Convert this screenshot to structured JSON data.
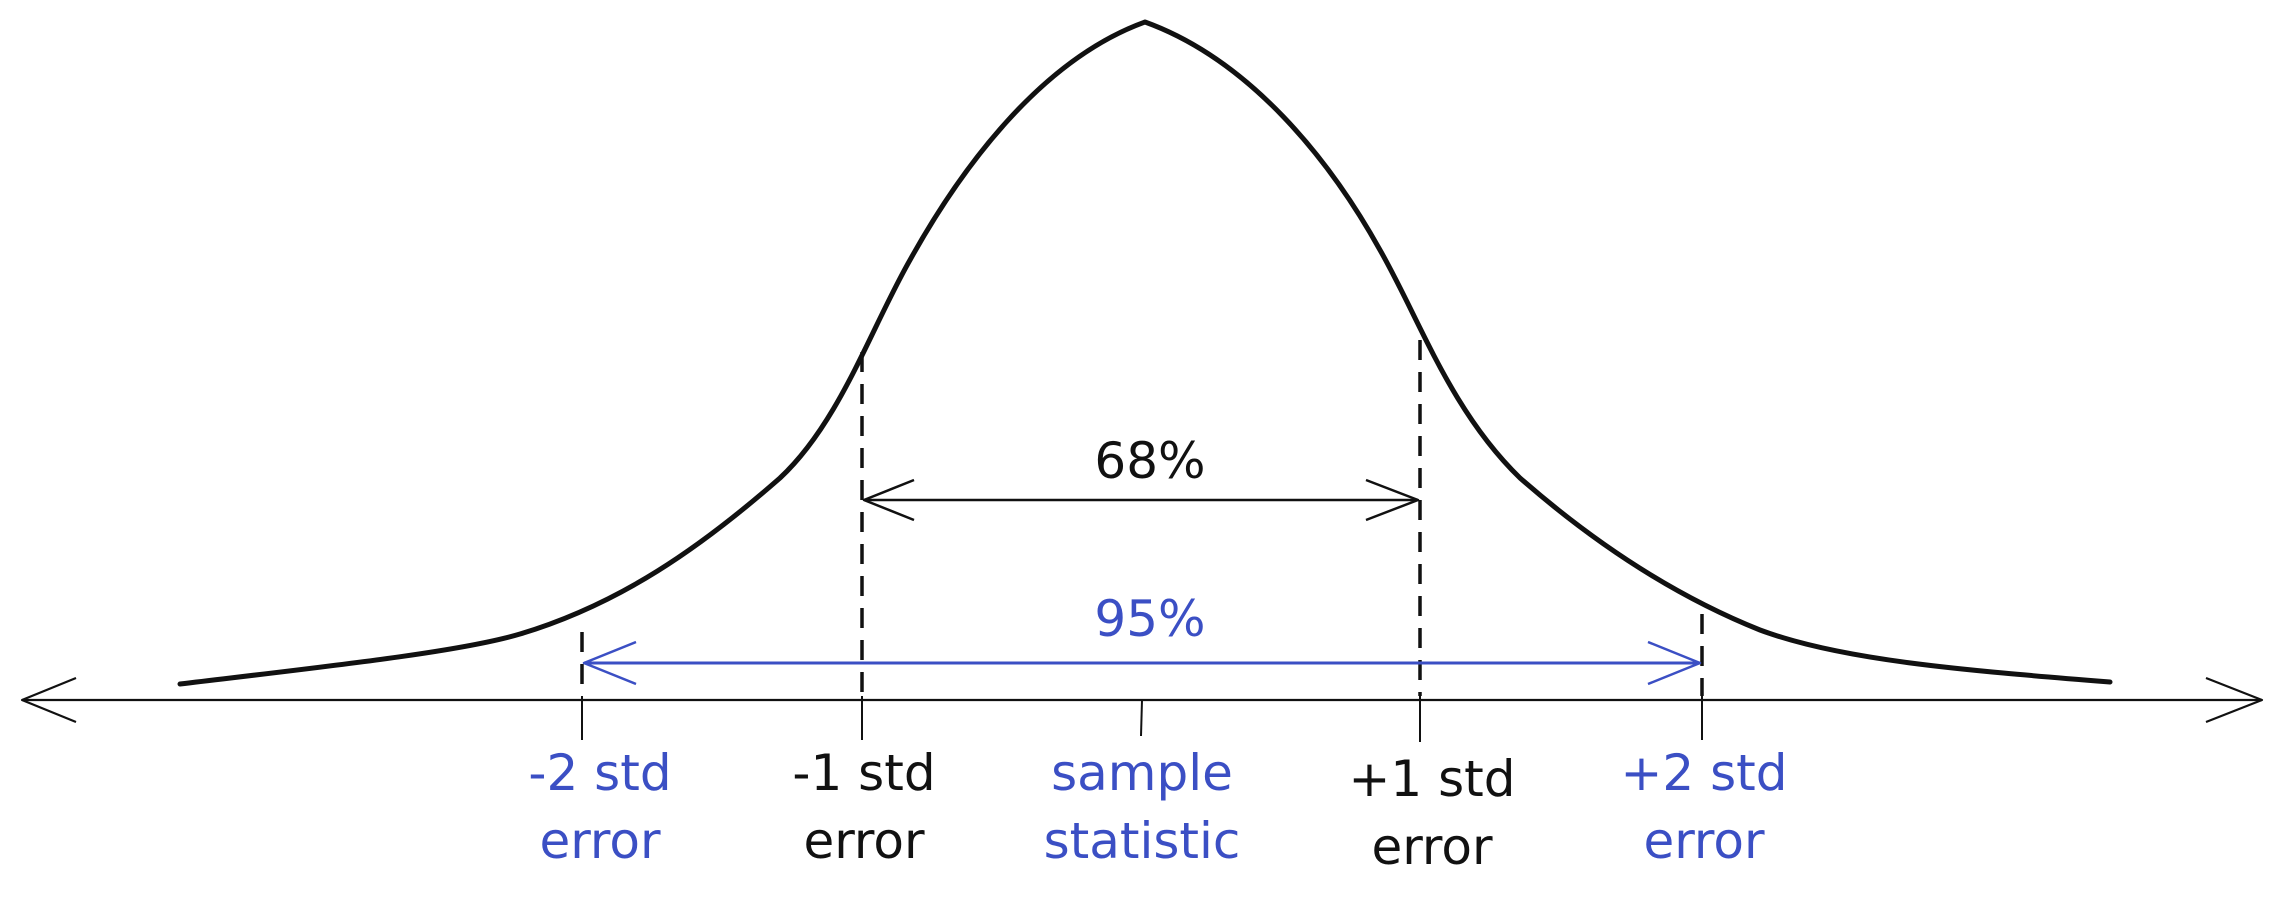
{
  "colors": {
    "ink": "#111111",
    "accent": "#3b4fc4"
  },
  "intervals": [
    {
      "label": "68%",
      "color": "#111111"
    },
    {
      "label": "95%",
      "color": "#3b4fc4"
    }
  ],
  "axis_labels": [
    {
      "line1": "-2 std",
      "line2": "error",
      "color": "#3b4fc4"
    },
    {
      "line1": "-1 std",
      "line2": "error",
      "color": "#111111"
    },
    {
      "line1": "sample",
      "line2": "statistic",
      "color": "#3b4fc4"
    },
    {
      "line1": "+1 std",
      "line2": "error",
      "color": "#111111"
    },
    {
      "line1": "+2 std",
      "line2": "error",
      "color": "#3b4fc4"
    }
  ]
}
